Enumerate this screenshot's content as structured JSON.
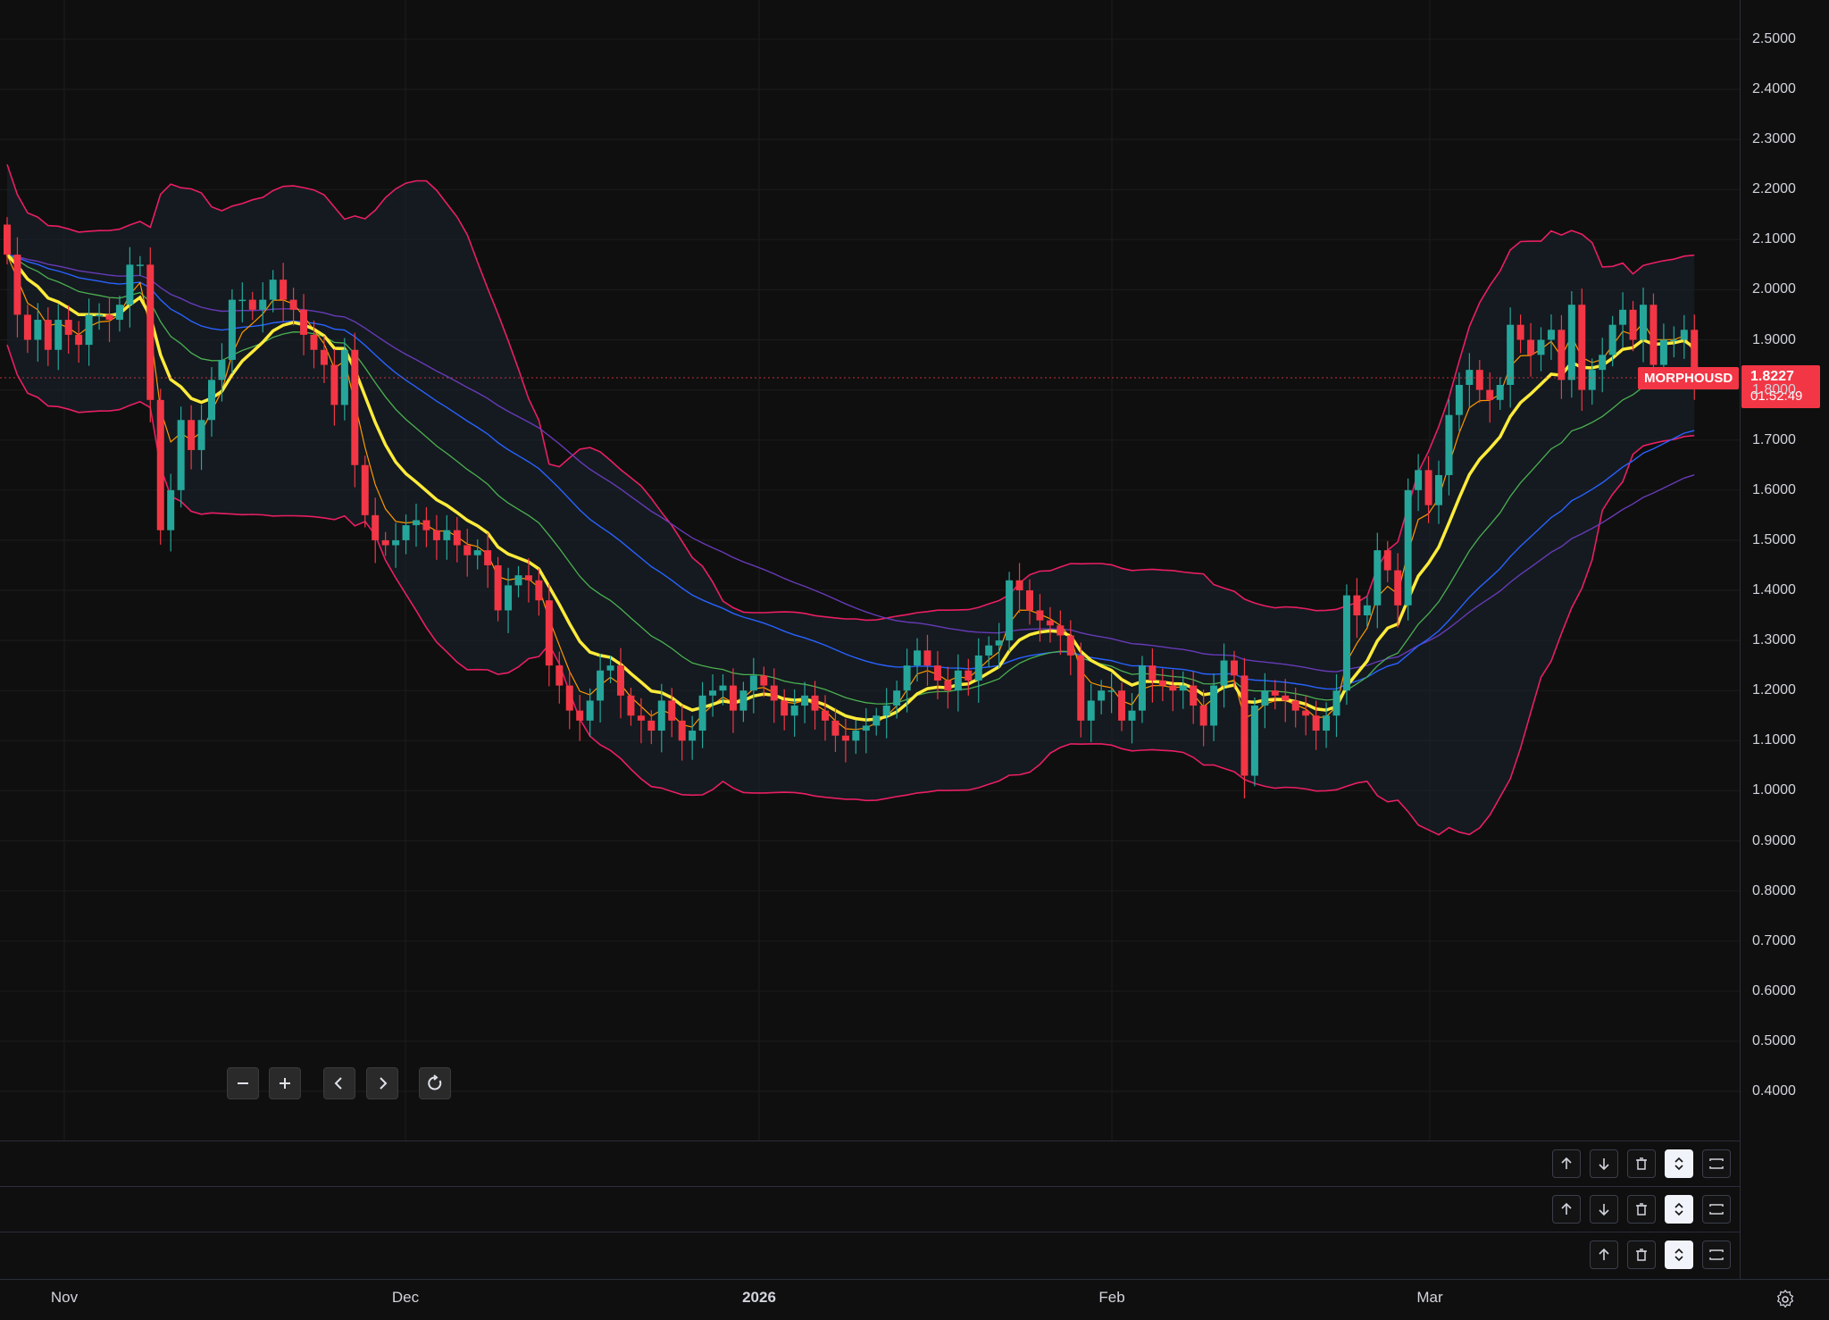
{
  "symbol": "MORPHOUSD",
  "current_price": "1.8227",
  "countdown": "01:52:49",
  "price_axis_labels": [
    "2.5000",
    "2.4000",
    "2.3000",
    "2.2000",
    "2.1000",
    "2.0000",
    "1.9000",
    "1.8000",
    "1.7000",
    "1.6000",
    "1.5000",
    "1.4000",
    "1.3000",
    "1.2000",
    "1.1000",
    "1.0000",
    "0.9000",
    "0.8000",
    "0.7000",
    "0.6000",
    "0.5000",
    "0.4000"
  ],
  "time_axis_labels": [
    "Nov",
    "Dec",
    "2026",
    "Feb",
    "Mar"
  ],
  "nav_buttons": [
    {
      "name": "zoom-out-button",
      "icon": "minus-icon"
    },
    {
      "name": "zoom-in-button",
      "icon": "plus-icon"
    },
    {
      "name": "scroll-left-button",
      "icon": "chevron-left-icon"
    },
    {
      "name": "scroll-right-button",
      "icon": "chevron-right-icon"
    },
    {
      "name": "reset-chart-button",
      "icon": "reset-icon"
    }
  ],
  "pane_tools": [
    [
      "move-up",
      "move-down",
      "delete",
      "maximize",
      "collapse"
    ],
    [
      "move-up",
      "move-down",
      "delete",
      "maximize",
      "collapse"
    ],
    [
      "move-up",
      "delete",
      "maximize",
      "collapse"
    ]
  ],
  "colors": {
    "up": "#26a69a",
    "down": "#f23645",
    "bollinger": "#e91e63",
    "ema_fast": "#ffeb3b",
    "ema_orange": "#ff9800",
    "ema_green": "#4caf50",
    "ema_blue": "#2962ff",
    "ema_purple": "#673ab7",
    "price_tag": "#f23645"
  },
  "chart_data": {
    "type": "candlestick",
    "symbol": "MORPHOUSD",
    "ylim": [
      0.35,
      2.55
    ],
    "grid": true,
    "close": [
      2.07,
      1.95,
      1.9,
      1.94,
      1.88,
      1.94,
      1.91,
      1.89,
      1.95,
      1.95,
      1.94,
      1.97,
      2.05,
      2.05,
      1.78,
      1.52,
      1.6,
      1.74,
      1.68,
      1.74,
      1.82,
      1.86,
      1.98,
      1.98,
      1.96,
      1.98,
      2.02,
      1.98,
      1.96,
      1.91,
      1.88,
      1.85,
      1.77,
      1.88,
      1.65,
      1.55,
      1.5,
      1.49,
      1.5,
      1.53,
      1.54,
      1.52,
      1.5,
      1.52,
      1.49,
      1.47,
      1.48,
      1.45,
      1.36,
      1.41,
      1.43,
      1.42,
      1.38,
      1.25,
      1.21,
      1.16,
      1.14,
      1.18,
      1.24,
      1.25,
      1.19,
      1.15,
      1.14,
      1.12,
      1.18,
      1.14,
      1.1,
      1.12,
      1.19,
      1.2,
      1.21,
      1.16,
      1.2,
      1.23,
      1.21,
      1.18,
      1.15,
      1.17,
      1.19,
      1.16,
      1.14,
      1.11,
      1.1,
      1.12,
      1.13,
      1.15,
      1.17,
      1.2,
      1.25,
      1.28,
      1.25,
      1.22,
      1.2,
      1.24,
      1.22,
      1.27,
      1.29,
      1.3,
      1.42,
      1.4,
      1.36,
      1.34,
      1.33,
      1.31,
      1.27,
      1.14,
      1.18,
      1.2,
      1.2,
      1.14,
      1.16,
      1.25,
      1.22,
      1.21,
      1.2,
      1.21,
      1.17,
      1.13,
      1.21,
      1.26,
      1.23,
      1.03,
      1.17,
      1.2,
      1.19,
      1.18,
      1.16,
      1.15,
      1.12,
      1.15,
      1.2,
      1.39,
      1.35,
      1.37,
      1.48,
      1.44,
      1.37,
      1.6,
      1.64,
      1.57,
      1.63,
      1.75,
      1.81,
      1.84,
      1.8,
      1.78,
      1.81,
      1.93,
      1.9,
      1.87,
      1.9,
      1.92,
      1.82,
      1.97,
      1.8,
      1.84,
      1.87,
      1.93,
      1.96,
      1.9,
      1.97,
      1.85,
      1.9,
      1.9,
      1.92,
      1.82
    ],
    "series": [
      {
        "name": "EMA",
        "color": "#ffeb3b"
      },
      {
        "name": "EMA",
        "color": "#ff9800"
      },
      {
        "name": "EMA",
        "color": "#4caf50"
      },
      {
        "name": "EMA",
        "color": "#2962ff"
      },
      {
        "name": "EMA",
        "color": "#673ab7"
      },
      {
        "name": "Bollinger Bands",
        "color": "#e91e63"
      }
    ]
  }
}
